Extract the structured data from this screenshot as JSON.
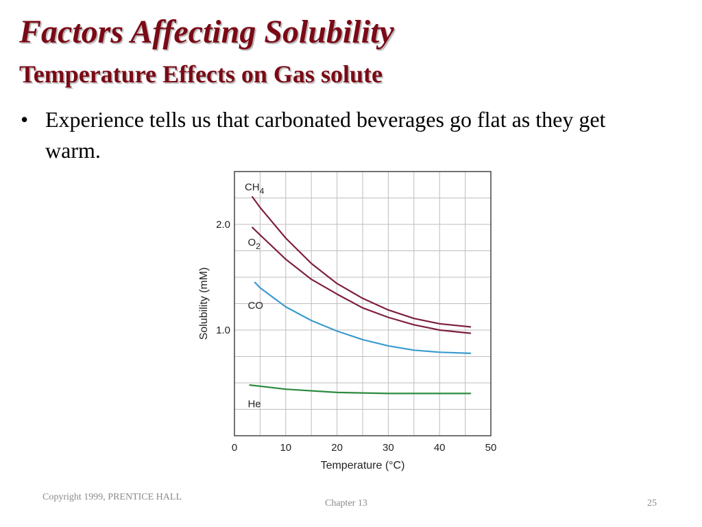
{
  "slide": {
    "title": "Factors Affecting Solubility",
    "subtitle": "Temperature Effects on Gas solute",
    "bullets": [
      {
        "marker": "•",
        "text": "Experience tells us that carbonated beverages go flat as they get warm."
      }
    ]
  },
  "footer": {
    "left": "Copyright 1999, PRENTICE HALL",
    "center": "Chapter 13",
    "right": "25"
  },
  "chart_data": {
    "type": "line",
    "title": "",
    "xlabel": "Temperature (°C)",
    "ylabel": "Solubility (mM)",
    "xlim": [
      0,
      50
    ],
    "ylim": [
      0,
      2.5
    ],
    "x_ticks": [
      "0",
      "10",
      "20",
      "30",
      "40",
      "50"
    ],
    "y_ticks": [
      {
        "value": 1.0,
        "label": "1.0"
      },
      {
        "value": 2.0,
        "label": "2.0"
      }
    ],
    "grid": true,
    "series": [
      {
        "name": "CH4",
        "label_base": "CH",
        "label_sub": "4",
        "color": "#7d1f3c",
        "label_anchor": [
          2,
          2.32
        ],
        "points": [
          [
            3.5,
            2.26
          ],
          [
            5,
            2.16
          ],
          [
            10,
            1.87
          ],
          [
            15,
            1.63
          ],
          [
            20,
            1.44
          ],
          [
            25,
            1.3
          ],
          [
            30,
            1.19
          ],
          [
            35,
            1.11
          ],
          [
            40,
            1.06
          ],
          [
            46,
            1.03
          ]
        ]
      },
      {
        "name": "O2",
        "label_base": "O",
        "label_sub": "2",
        "color": "#7d1f3c",
        "label_anchor": [
          2.6,
          1.8
        ],
        "points": [
          [
            3.5,
            1.97
          ],
          [
            5,
            1.9
          ],
          [
            10,
            1.67
          ],
          [
            15,
            1.48
          ],
          [
            20,
            1.34
          ],
          [
            25,
            1.21
          ],
          [
            30,
            1.12
          ],
          [
            35,
            1.05
          ],
          [
            40,
            1.0
          ],
          [
            46,
            0.97
          ]
        ]
      },
      {
        "name": "CO",
        "label_base": "CO",
        "label_sub": "",
        "color": "#3a9bcf",
        "label_anchor": [
          2.6,
          1.2
        ],
        "points": [
          [
            4,
            1.45
          ],
          [
            5,
            1.4
          ],
          [
            10,
            1.22
          ],
          [
            15,
            1.09
          ],
          [
            20,
            0.99
          ],
          [
            25,
            0.91
          ],
          [
            30,
            0.85
          ],
          [
            35,
            0.81
          ],
          [
            40,
            0.79
          ],
          [
            46,
            0.78
          ]
        ]
      },
      {
        "name": "He",
        "label_base": "He",
        "label_sub": "",
        "color": "#2a8a3e",
        "label_anchor": [
          2.6,
          0.27
        ],
        "points": [
          [
            3,
            0.48
          ],
          [
            10,
            0.44
          ],
          [
            20,
            0.41
          ],
          [
            30,
            0.4
          ],
          [
            40,
            0.4
          ],
          [
            46,
            0.4
          ]
        ]
      }
    ]
  }
}
